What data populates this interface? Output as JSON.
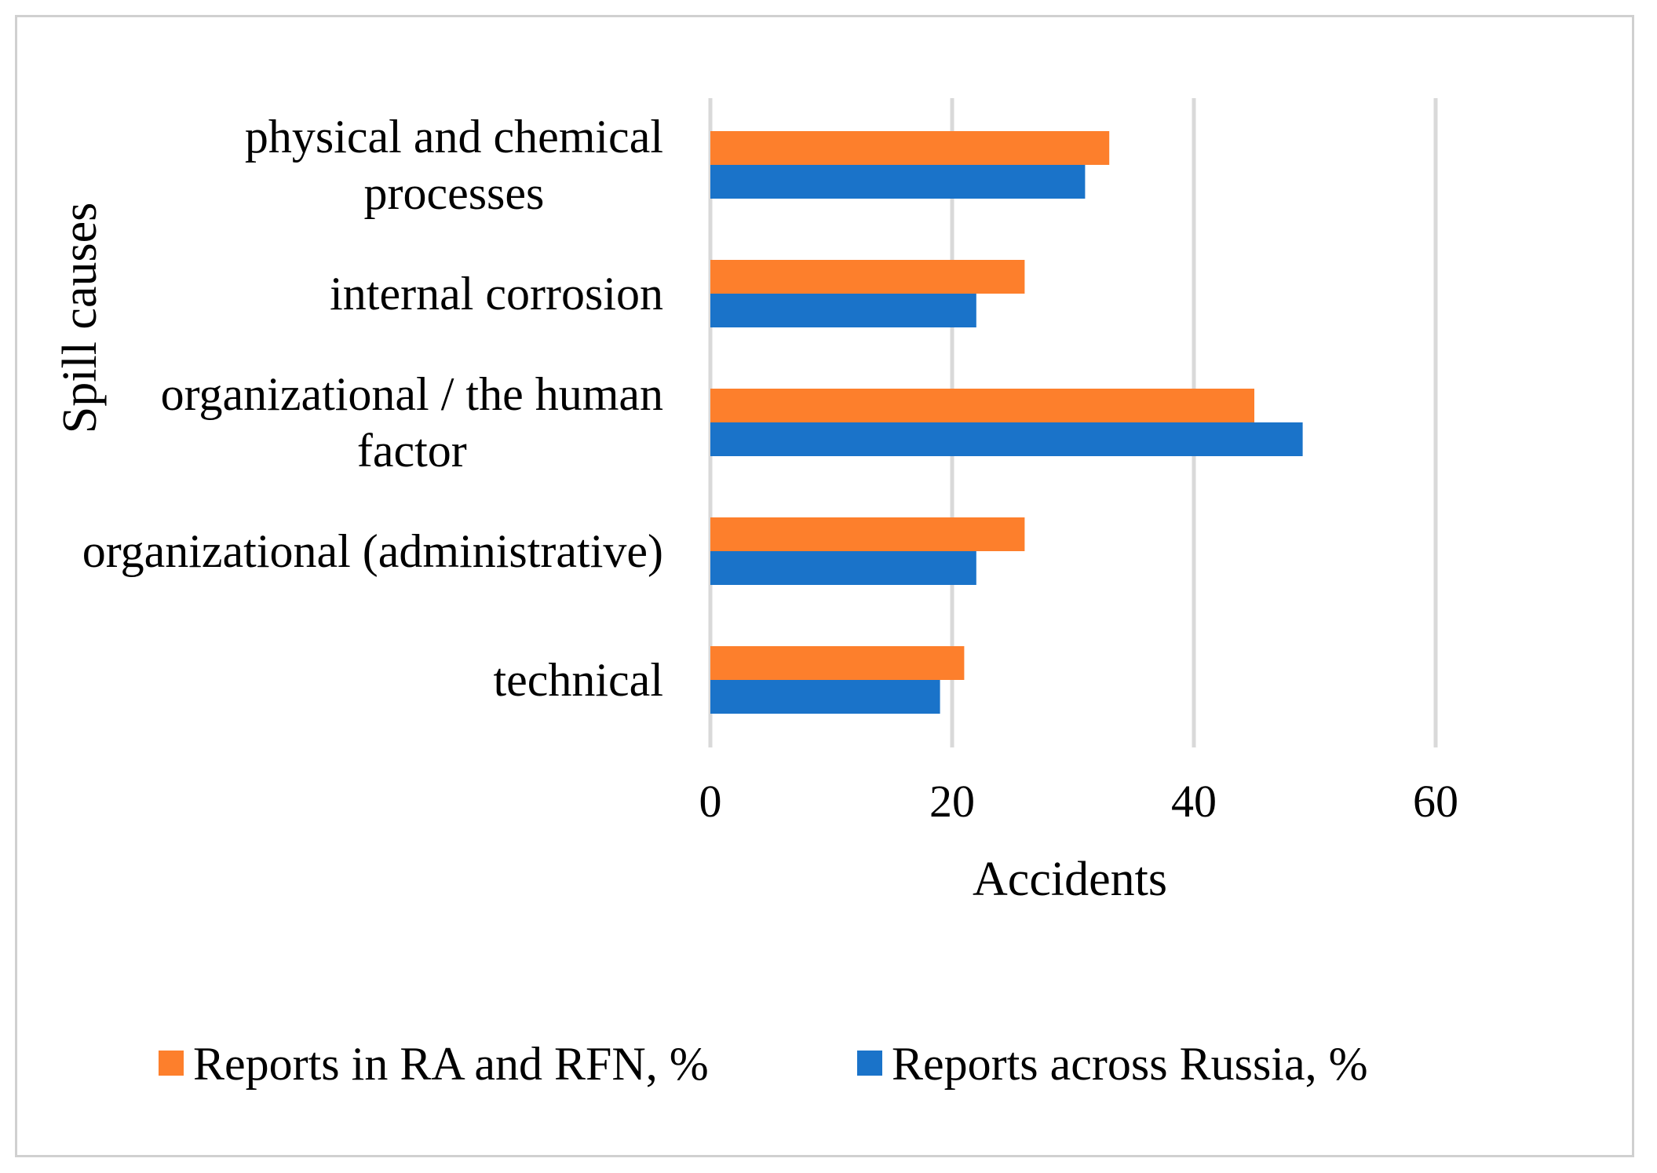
{
  "chart_data": {
    "type": "bar",
    "orientation": "horizontal",
    "title": "",
    "xlabel": "Accidents",
    "ylabel": "Spill causes",
    "xlim": [
      0,
      60
    ],
    "xticks": [
      0,
      20,
      40,
      60
    ],
    "grid": true,
    "legend_position": "bottom",
    "categories": [
      [
        "physical and chemical",
        "processes"
      ],
      [
        "internal corrosion"
      ],
      [
        "organizational / the human",
        "factor"
      ],
      [
        "organizational (administrative)"
      ],
      [
        "technical"
      ]
    ],
    "series": [
      {
        "name": "Reports in RA and RFN, %",
        "color": "#fd7f2c",
        "values": [
          33,
          26,
          45,
          26,
          21
        ]
      },
      {
        "name": "Reports across Russia, %",
        "color": "#1a73c9",
        "values": [
          31,
          22,
          49,
          22,
          19
        ]
      }
    ]
  }
}
